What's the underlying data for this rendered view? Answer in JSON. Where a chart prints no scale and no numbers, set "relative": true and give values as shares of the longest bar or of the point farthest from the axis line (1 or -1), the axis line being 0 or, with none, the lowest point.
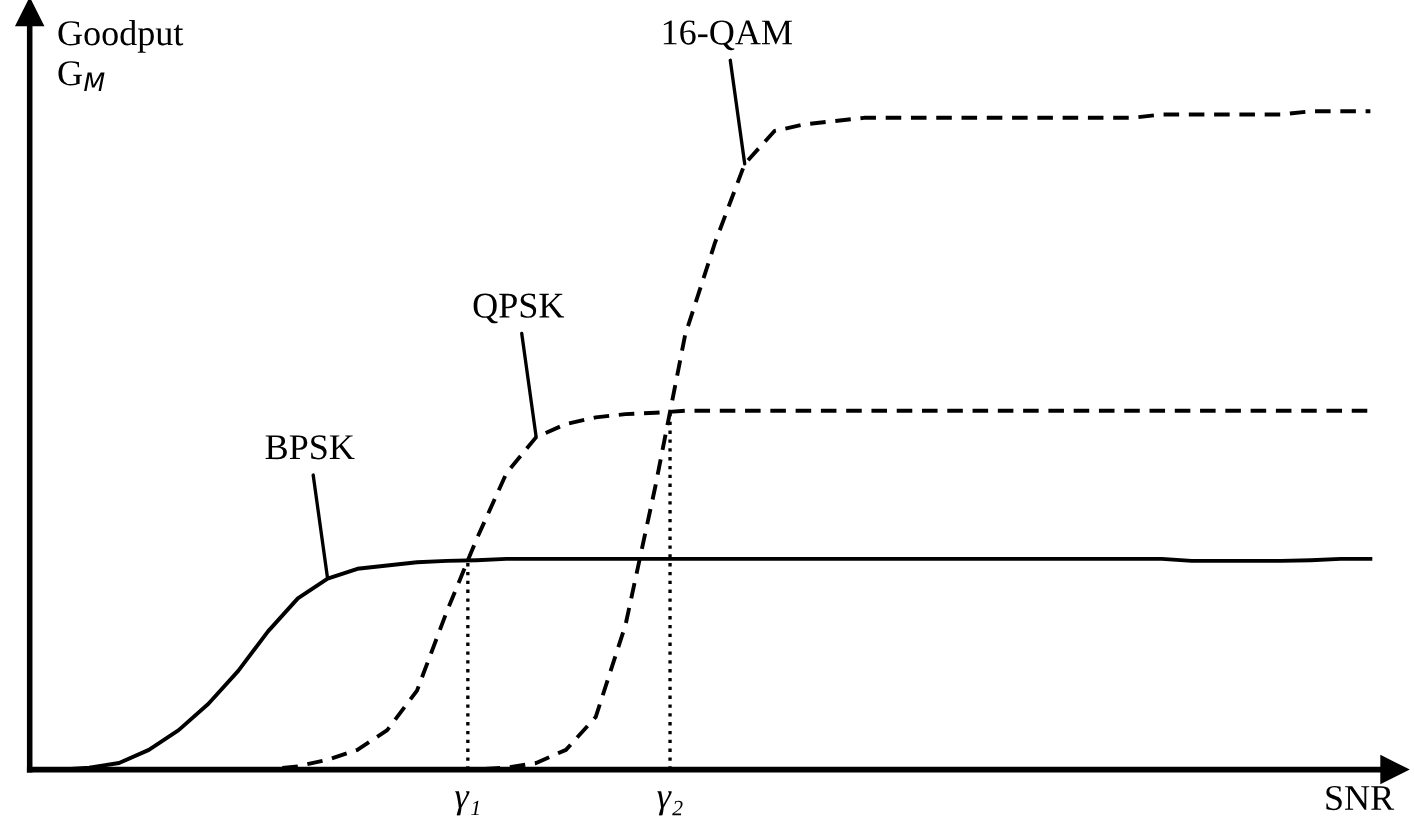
{
  "chart_data": {
    "type": "line",
    "relative": true,
    "ylabel": "Goodput\nG$_{M}$",
    "xlabel": "SNR",
    "grid": false,
    "legend": false,
    "marker": "none",
    "categories": [
      null,
      null,
      null,
      null,
      null,
      null,
      null,
      null,
      null,
      null,
      null,
      null,
      null,
      null,
      null,
      null,
      null,
      null,
      null,
      null,
      null,
      null,
      null,
      null,
      null,
      null,
      null,
      null,
      null,
      null,
      null,
      null,
      null,
      null,
      null,
      null,
      null,
      null,
      null,
      null,
      null,
      null,
      null,
      null,
      null,
      null
    ],
    "series": [
      {
        "name": "BPSK",
        "color": "#000000",
        "line_style": "solid",
        "values": [
          0,
          0,
          0.003,
          0.01,
          0.03,
          0.06,
          0.1,
          0.15,
          0.21,
          0.26,
          0.29,
          0.305,
          0.31,
          0.315,
          0.317,
          0.318,
          0.32,
          0.32,
          0.32,
          0.32,
          0.32,
          0.32,
          0.32,
          0.32,
          0.32,
          0.32,
          0.32,
          0.32,
          0.32,
          0.32,
          0.32,
          0.32,
          0.32,
          0.32,
          0.32,
          0.32,
          0.32,
          0.32,
          0.32,
          0.317,
          0.317,
          0.317,
          0.317,
          0.318,
          0.32,
          0.32
        ]
      },
      {
        "name": "QPSK",
        "color": "#000000",
        "line_style": "dashed",
        "values": [
          0,
          0,
          0,
          0,
          0,
          0,
          0,
          0,
          0,
          0.005,
          0.015,
          0.03,
          0.06,
          0.12,
          0.24,
          0.35,
          0.45,
          0.505,
          0.525,
          0.535,
          0.54,
          0.542,
          0.545,
          0.545,
          0.545,
          0.545,
          0.545,
          0.545,
          0.545,
          0.545,
          0.545,
          0.545,
          0.545,
          0.545,
          0.545,
          0.545,
          0.545,
          0.545,
          0.545,
          0.545,
          0.545,
          0.545,
          0.545,
          0.545,
          0.545,
          0.545
        ]
      },
      {
        "name": "16-QAM",
        "color": "#000000",
        "line_style": "dashed",
        "values": [
          0,
          0,
          0,
          0,
          0,
          0,
          0,
          0,
          0,
          0,
          0,
          0,
          0,
          0,
          0,
          0,
          0.003,
          0.01,
          0.03,
          0.08,
          0.22,
          0.43,
          0.66,
          0.8,
          0.92,
          0.97,
          0.98,
          0.985,
          0.99,
          0.99,
          0.99,
          0.99,
          0.99,
          0.99,
          0.99,
          0.99,
          0.99,
          0.99,
          0.995,
          0.995,
          0.995,
          0.995,
          0.995,
          1,
          1,
          1
        ]
      }
    ],
    "annotations": [
      "γ₁",
      "γ₂"
    ]
  }
}
